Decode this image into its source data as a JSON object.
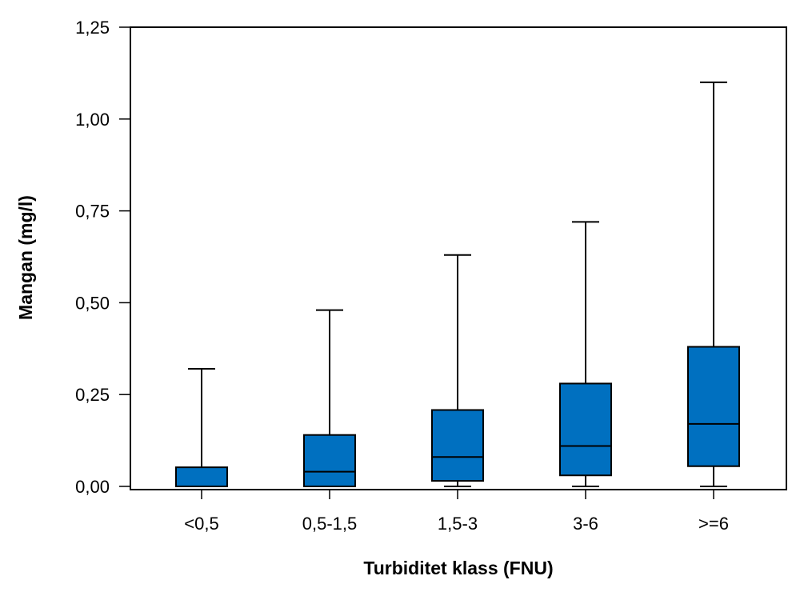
{
  "chart_data": {
    "type": "boxplot",
    "xlabel": "Turbiditet klass (FNU)",
    "ylabel": "Mangan (mg/l)",
    "ylim": [
      0,
      1.25
    ],
    "yticks": [
      0,
      0.25,
      0.5,
      0.75,
      1.0,
      1.25
    ],
    "ytick_labels": [
      "0,00",
      "0,25",
      "0,50",
      "0,75",
      "1,00",
      "1,25"
    ],
    "categories": [
      "<0,5",
      "0,5-1,5",
      "1,5-3",
      "3-6",
      ">=6"
    ],
    "boxes": [
      {
        "category": "<0,5",
        "whisker_low": 0.0,
        "q1": 0.0,
        "median": 0.0,
        "q3": 0.052,
        "whisker_high": 0.32
      },
      {
        "category": "0,5-1,5",
        "whisker_low": 0.0,
        "q1": 0.0,
        "median": 0.04,
        "q3": 0.14,
        "whisker_high": 0.48
      },
      {
        "category": "1,5-3",
        "whisker_low": 0.0,
        "q1": 0.015,
        "median": 0.08,
        "q3": 0.208,
        "whisker_high": 0.63
      },
      {
        "category": "3-6",
        "whisker_low": 0.0,
        "q1": 0.03,
        "median": 0.11,
        "q3": 0.28,
        "whisker_high": 0.72
      },
      {
        "category": ">=6",
        "whisker_low": 0.0,
        "q1": 0.055,
        "median": 0.17,
        "q3": 0.38,
        "whisker_high": 1.1
      }
    ],
    "box_color": "#0070c0",
    "line_color": "#000000",
    "grid": false,
    "legend": "none"
  }
}
